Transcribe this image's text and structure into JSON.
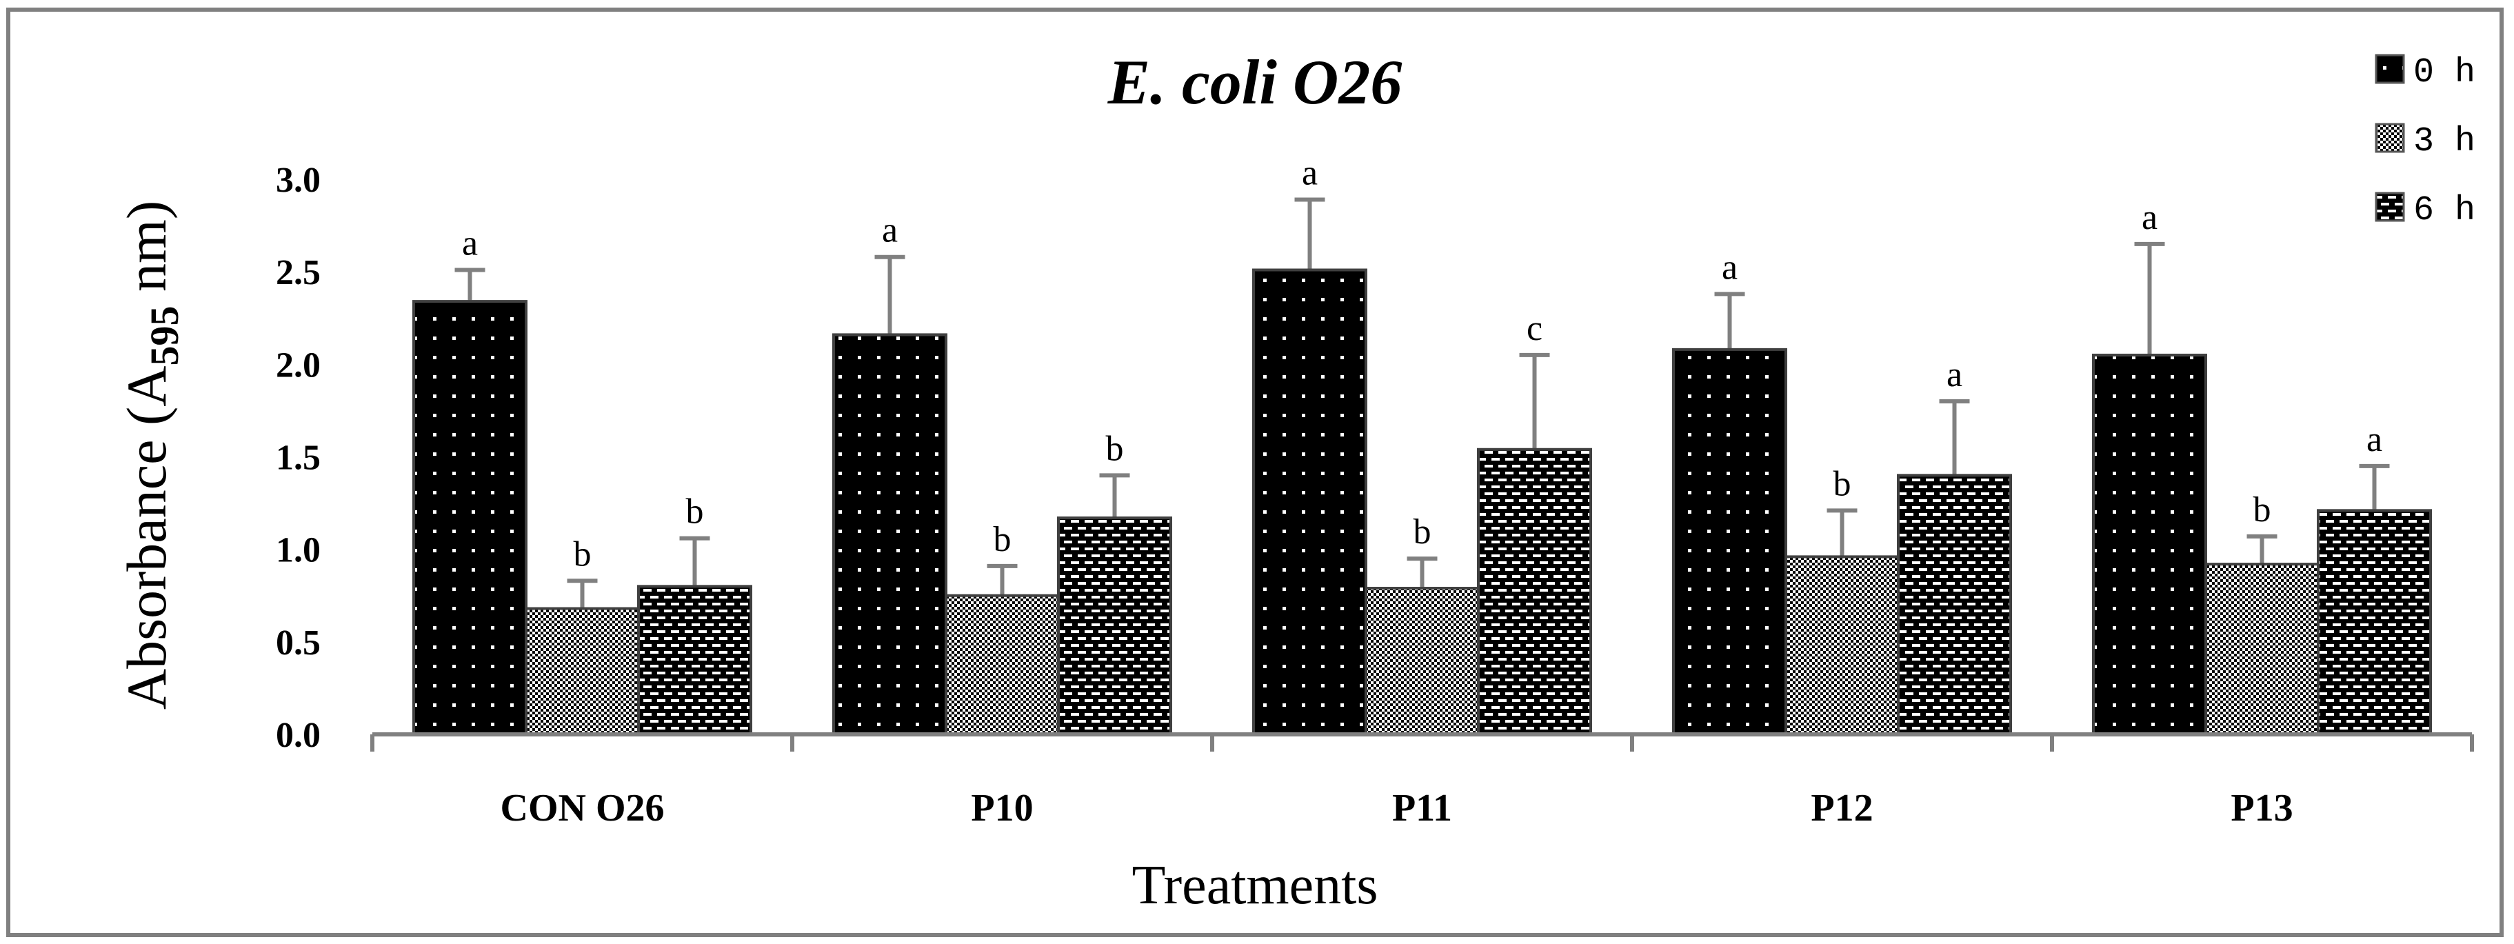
{
  "chart_data": {
    "type": "bar",
    "title": "E. coli O26",
    "xlabel": "Treatments",
    "ylabel": "Absorbance (A595 nm)",
    "ylabel_parts": {
      "main": "Absorbance (A",
      "sub": "595",
      "end": " nm)"
    },
    "ylim": [
      0,
      3.0
    ],
    "yticks": [
      "0.0",
      "0.5",
      "1.0",
      "1.5",
      "2.0",
      "2.5",
      "3.0"
    ],
    "grid": false,
    "legend_position": "top-right",
    "categories": [
      "CON O26",
      "P10",
      "P11",
      "P12",
      "P13"
    ],
    "series": [
      {
        "name": "0 h",
        "values": [
          2.34,
          2.16,
          2.51,
          2.08,
          2.05
        ],
        "errors": [
          0.17,
          0.42,
          0.38,
          0.3,
          0.6
        ],
        "letters": [
          "a",
          "a",
          "a",
          "a",
          "a"
        ]
      },
      {
        "name": "3 h",
        "values": [
          0.68,
          0.75,
          0.79,
          0.96,
          0.92
        ],
        "errors": [
          0.15,
          0.16,
          0.16,
          0.25,
          0.15
        ],
        "letters": [
          "b",
          "b",
          "b",
          "b",
          "b"
        ]
      },
      {
        "name": "6 h",
        "values": [
          0.8,
          1.17,
          1.54,
          1.4,
          1.21
        ],
        "errors": [
          0.26,
          0.23,
          0.51,
          0.4,
          0.24
        ],
        "letters": [
          "b",
          "b",
          "c",
          "a",
          "a"
        ]
      }
    ]
  }
}
